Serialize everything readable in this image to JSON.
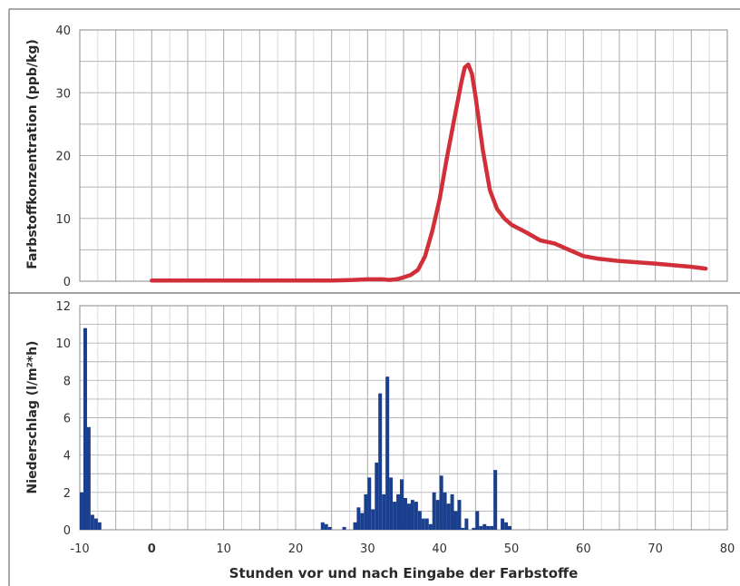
{
  "chart_data": [
    {
      "type": "line",
      "ylabel": "Farbstoffkonzentration (ppb/kg)",
      "ylim": [
        0,
        40
      ],
      "yticks": [
        "0",
        "10",
        "20",
        "30",
        "40"
      ],
      "grid": true,
      "color": "#d1303a",
      "series": [
        {
          "x": [
            0,
            5,
            10,
            15,
            20,
            25,
            28,
            30,
            32,
            33,
            34,
            35,
            36,
            37,
            38,
            39,
            40,
            41,
            42,
            43,
            43.5,
            44,
            44.5,
            45,
            46,
            47,
            48,
            49,
            50,
            52,
            54,
            56,
            58,
            60,
            62,
            65,
            70,
            75,
            77
          ],
          "y": [
            0.1,
            0.1,
            0.1,
            0.1,
            0.1,
            0.1,
            0.2,
            0.3,
            0.3,
            0.2,
            0.3,
            0.6,
            1.0,
            1.8,
            4.0,
            8.0,
            13.0,
            19.5,
            25.5,
            31.5,
            34.0,
            34.5,
            33.0,
            29.5,
            21.0,
            14.5,
            11.5,
            10.0,
            9.0,
            7.8,
            6.5,
            6.0,
            5.0,
            4.0,
            3.6,
            3.2,
            2.8,
            2.3,
            2.0
          ]
        }
      ]
    },
    {
      "type": "bar",
      "ylabel": "Niederschlag (l/m²*h)",
      "xlabel": "Stunden vor und nach Eingabe der Farbstoffe",
      "xlim": [
        -10,
        80
      ],
      "ylim": [
        0,
        12
      ],
      "xticks": [
        "-10",
        "0",
        "10",
        "20",
        "30",
        "40",
        "50",
        "60",
        "70",
        "80"
      ],
      "yticks": [
        "0",
        "2",
        "4",
        "6",
        "8",
        "10",
        "12"
      ],
      "grid": true,
      "color": "#1a3f8f",
      "bar_width_hours": 0.5,
      "series": [
        {
          "x": [
            -10,
            -9.5,
            -9,
            -8.5,
            -8,
            -7.5,
            23.5,
            24,
            24.5,
            26.5,
            28,
            28.5,
            29,
            29.5,
            30,
            30.5,
            31,
            31.5,
            32,
            32.5,
            33,
            33.5,
            34,
            34.5,
            35,
            35.5,
            36,
            36.5,
            37,
            37.5,
            38,
            38.5,
            39,
            39.5,
            40,
            40.5,
            41,
            41.5,
            42,
            42.5,
            43,
            43.5,
            44.5,
            45,
            45.5,
            46,
            46.5,
            47,
            47.5,
            48.5,
            49,
            49.5
          ],
          "y": [
            2.0,
            10.8,
            5.5,
            0.8,
            0.6,
            0.4,
            0.4,
            0.3,
            0.15,
            0.15,
            0.4,
            1.2,
            0.9,
            1.9,
            2.8,
            1.1,
            3.6,
            7.3,
            1.9,
            8.2,
            2.8,
            1.5,
            1.9,
            2.7,
            1.7,
            1.4,
            1.6,
            1.5,
            1.0,
            0.6,
            0.6,
            0.3,
            2.0,
            1.6,
            2.9,
            2.0,
            1.4,
            1.9,
            1.0,
            1.6,
            0.1,
            0.6,
            0.1,
            1.0,
            0.2,
            0.3,
            0.2,
            0.2,
            3.2,
            0.6,
            0.4,
            0.2
          ]
        }
      ]
    }
  ]
}
